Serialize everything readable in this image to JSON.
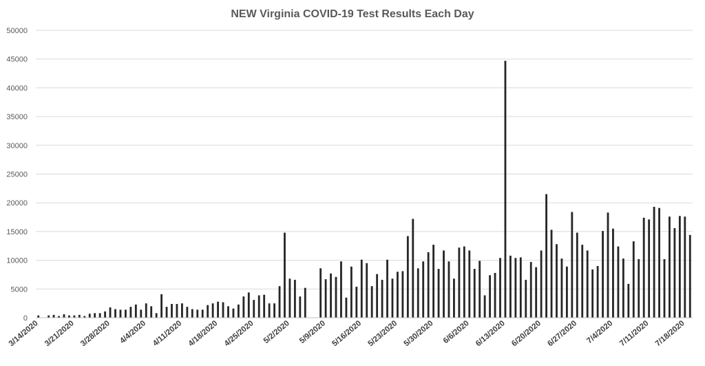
{
  "chart_data": {
    "type": "bar",
    "title": "NEW Virginia COVID-19 Test Results Each Day",
    "xlabel": "",
    "ylabel": "",
    "ylim": [
      0,
      50000
    ],
    "yticks": [
      0,
      5000,
      10000,
      15000,
      20000,
      25000,
      30000,
      35000,
      40000,
      45000,
      50000
    ],
    "grid": true,
    "legend": "none",
    "bar_color": "#262626",
    "x_tick_labels": [
      "3/14/2020",
      "3/21/2020",
      "3/28/2020",
      "4/4/2020",
      "4/11/2020",
      "4/18/2020",
      "4/25/2020",
      "5/2/2020",
      "5/9/2020",
      "5/16/2020",
      "5/23/2020",
      "5/30/2020",
      "6/6/2020",
      "6/13/2020",
      "6/20/2020",
      "6/27/2020",
      "7/4/2020",
      "7/11/2020",
      "7/18/2020"
    ],
    "start_date": "3/14/2020",
    "end_date": "7/18/2020",
    "values": [
      400,
      0,
      400,
      500,
      300,
      600,
      400,
      400,
      500,
      300,
      700,
      800,
      800,
      1100,
      1800,
      1500,
      1400,
      1400,
      1900,
      2300,
      1400,
      2500,
      2000,
      800,
      4100,
      1900,
      2400,
      2400,
      2500,
      1900,
      1500,
      1400,
      1400,
      2200,
      2500,
      2800,
      2700,
      2000,
      1600,
      2300,
      3700,
      4400,
      3100,
      3900,
      4000,
      2500,
      2500,
      5500,
      14800,
      6800,
      6600,
      3700,
      5200,
      0,
      0,
      8600,
      6700,
      7700,
      7100,
      9800,
      3500,
      8900,
      5400,
      10100,
      9500,
      5500,
      7600,
      6600,
      10100,
      6800,
      8000,
      8100,
      14200,
      17200,
      8600,
      9800,
      11400,
      12700,
      8500,
      11700,
      9800,
      6800,
      12200,
      12400,
      11700,
      8500,
      9900,
      3900,
      7400,
      7800,
      10400,
      44700,
      10800,
      10400,
      10500,
      6600,
      9700,
      8800,
      11700,
      21500,
      15300,
      12800,
      10300,
      8900,
      18400,
      14800,
      12700,
      11700,
      8400,
      9000,
      15100,
      18300,
      15500,
      12400,
      10300,
      5900,
      13300,
      10200,
      17400,
      17100,
      19300,
      19100,
      10200,
      17600,
      15600,
      17700,
      17600,
      14400
    ]
  }
}
